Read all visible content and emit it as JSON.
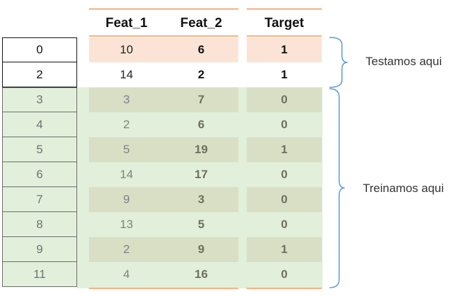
{
  "headers": {
    "feat1": "Feat_1",
    "feat2": "Feat_2",
    "target": "Target"
  },
  "rows": [
    {
      "index": "0",
      "feat1": "10",
      "feat2": "6",
      "target": "1",
      "group": "test",
      "shade": "orange"
    },
    {
      "index": "2",
      "feat1": "14",
      "feat2": "2",
      "target": "1",
      "group": "test",
      "shade": "white"
    },
    {
      "index": "3",
      "feat1": "3",
      "feat2": "7",
      "target": "0",
      "group": "train",
      "shade": "dark"
    },
    {
      "index": "4",
      "feat1": "2",
      "feat2": "6",
      "target": "0",
      "group": "train",
      "shade": "light"
    },
    {
      "index": "5",
      "feat1": "5",
      "feat2": "19",
      "target": "1",
      "group": "train",
      "shade": "dark"
    },
    {
      "index": "6",
      "feat1": "14",
      "feat2": "17",
      "target": "0",
      "group": "train",
      "shade": "light"
    },
    {
      "index": "7",
      "feat1": "9",
      "feat2": "3",
      "target": "0",
      "group": "train",
      "shade": "dark"
    },
    {
      "index": "8",
      "feat1": "13",
      "feat2": "5",
      "target": "0",
      "group": "train",
      "shade": "light"
    },
    {
      "index": "9",
      "feat1": "2",
      "feat2": "9",
      "target": "1",
      "group": "train",
      "shade": "dark"
    },
    {
      "index": "11",
      "feat1": "4",
      "feat2": "16",
      "target": "0",
      "group": "train",
      "shade": "light"
    }
  ],
  "labels": {
    "test": "Testamos aqui",
    "train": "Treinamos aqui"
  },
  "colors": {
    "orange_row": "#fbe4d5",
    "dark_green_row": "#d9dfc5",
    "light_green_row": "#e2efda",
    "rule": "#f4b183",
    "brace": "#5b9bd5"
  }
}
